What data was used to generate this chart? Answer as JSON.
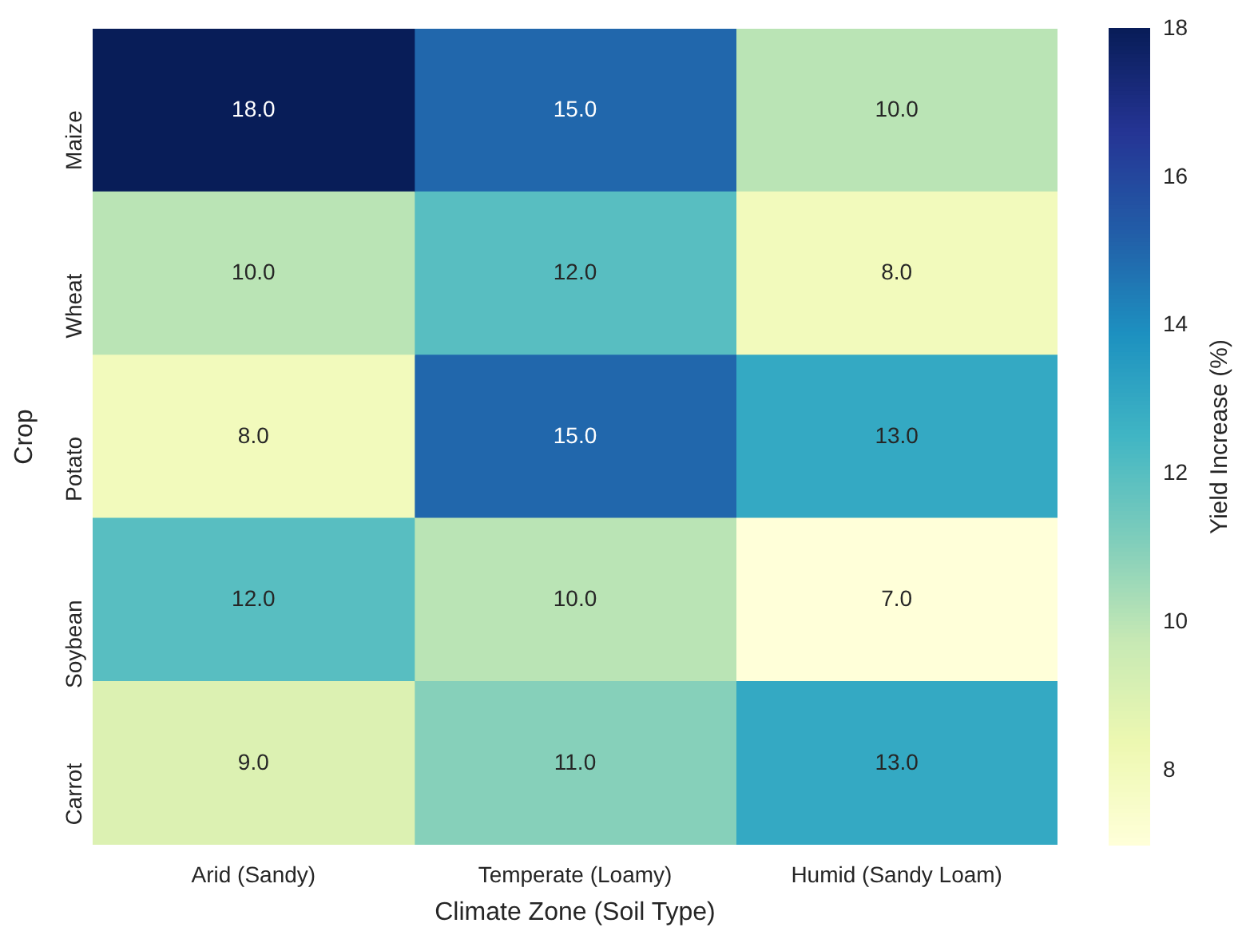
{
  "chart_data": {
    "type": "heatmap",
    "xlabel": "Climate Zone (Soil Type)",
    "ylabel": "Crop",
    "clabel": "Yield Increase (%)",
    "categories": [
      "Arid (Sandy)",
      "Temperate (Loamy)",
      "Humid (Sandy Loam)"
    ],
    "y_categories": [
      "Maize",
      "Wheat",
      "Potato",
      "Soybean",
      "Carrot"
    ],
    "cells": [
      [
        18,
        15,
        10
      ],
      [
        10,
        12,
        8
      ],
      [
        8,
        15,
        13
      ],
      [
        12,
        10,
        7
      ],
      [
        9,
        11,
        13
      ]
    ],
    "cell_labels": [
      [
        "18.0",
        "15.0",
        "10.0"
      ],
      [
        "10.0",
        "12.0",
        "8.0"
      ],
      [
        "8.0",
        "15.0",
        "13.0"
      ],
      [
        "12.0",
        "10.0",
        "7.0"
      ],
      [
        "9.0",
        "11.0",
        "13.0"
      ]
    ],
    "clim": [
      7,
      18
    ],
    "cticks": [
      8,
      10,
      12,
      14,
      16,
      18
    ]
  }
}
